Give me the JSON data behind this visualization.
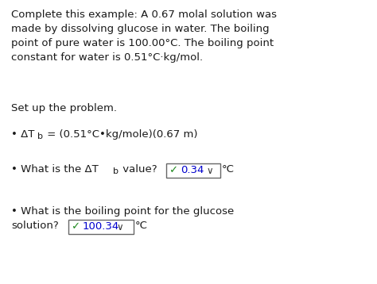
{
  "bg_color": "#ffffff",
  "figsize": [
    4.74,
    3.58
  ],
  "dpi": 100,
  "paragraph1": "Complete this example: A 0.67 molal solution was\nmade by dissolving glucose in water. The boiling\npoint of pure water is 100.00°C. The boiling point\nconstant for water is 0.51°C·kg/mol.",
  "paragraph2": "Set up the problem.",
  "bullet1_text": "• ΔT",
  "bullet1_sub": "b",
  "bullet1_rest": " = (0.51°C•kg/mole)(0.67 m)",
  "bullet2_pre": "• What is the ΔT",
  "bullet2_sub": "b",
  "bullet2_mid": " value?",
  "bullet2_answer": "0.34",
  "bullet2_unit": "°C",
  "bullet3_line1": "• What is the boiling point for the glucose",
  "bullet3_line2": "solution?",
  "bullet3_answer": "100.34",
  "bullet3_unit": "°C",
  "answer_border": "#666666",
  "checkmark_color": "#228B22",
  "answer_text_color": "#0000cd",
  "dropdown_color": "#333333",
  "font_size": 9.5,
  "sub_font_size": 8.0,
  "text_color": "#1a1a1a"
}
